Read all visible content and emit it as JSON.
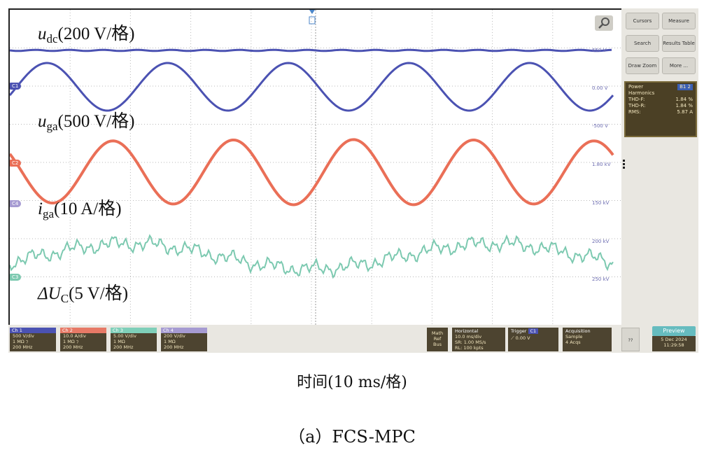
{
  "labels": {
    "udc_sym": "u",
    "udc_sub": "dc",
    "udc_scale": "(200 V/格)",
    "uga_sym": "u",
    "uga_sub": "ga",
    "uga_scale": "(500 V/格)",
    "iga_sym": "i",
    "iga_sub": "ga",
    "iga_scale": "(10 A/格)",
    "duc_sym": "ΔU",
    "duc_sub": "C",
    "duc_scale": "(5 V/格)"
  },
  "channel_markers": {
    "c1": "C1",
    "c2": "C2",
    "c4": "C4",
    "c3": "C3"
  },
  "levels": {
    "l1": "650 V",
    "l2": "0.00 V",
    "l3": "-500 V",
    "l4": "1.80 kV",
    "l5": "150 kV",
    "l6": "200 kV",
    "l7": "250 kV"
  },
  "menu": {
    "cursors": "Cursors",
    "measure": "Measure",
    "search": "Search",
    "results_table": "Results Table",
    "draw_zoom": "Draw Zoom",
    "more": "More ..."
  },
  "power_panel": {
    "title": "Power",
    "tag": "B1 2",
    "subtitle": "Harmonics",
    "r1_label": "THD-F:",
    "r1_value": "1.84 %",
    "r2_label": "THD-R:",
    "r2_value": "1.84 %",
    "r3_label": "RMS:",
    "r3_value": "5.87 A"
  },
  "channels": [
    {
      "name": "Ch 1",
      "l1": "500 V/div",
      "l2": "1 MΩ ⁊",
      "l3": "200 MHz",
      "color": "#4b52b2"
    },
    {
      "name": "Ch 2",
      "l1": "10.0 A/div",
      "l2": "1 MΩ ⁊",
      "l3": "200 MHz",
      "color": "#e77966"
    },
    {
      "name": "Ch 3",
      "l1": "5.00 V/div",
      "l2": "1 MΩ",
      "l3": "200 MHz",
      "color": "#7fcfb9"
    },
    {
      "name": "Ch 4",
      "l1": "200 V/div",
      "l2": "1 MΩ",
      "l3": "200 MHz",
      "color": "#a69bd2"
    }
  ],
  "math_btn": "Math Ref Bus",
  "horizontal": {
    "title": "Horizontal",
    "l1": "10.0 ms/div",
    "l2": "SR: 1.00 MS/s",
    "l3": "RL: 100 kpts"
  },
  "trigger": {
    "title": "Trigger",
    "tag": "C1",
    "l1": "0.00 V"
  },
  "acquisition": {
    "title": "Acquisition",
    "l1": "Sample",
    "l2": "4 Acqs"
  },
  "preview": {
    "label": "Preview",
    "date": "5 Dec 2024",
    "time": "11:29:58"
  },
  "corner_btn": "??",
  "colors": {
    "ch1": "#4b52b2",
    "ch2": "#ea6f57",
    "ch3": "#7cc9b0",
    "ch4": "#a69bd2",
    "grid": "#b8b8b8"
  },
  "icons": {
    "zoom": "magnifier-icon",
    "trigger_pos": "trigger-position-icon"
  },
  "xlabel": "时间(10 ms/格)",
  "caption": "（a）FCS-MPC"
}
